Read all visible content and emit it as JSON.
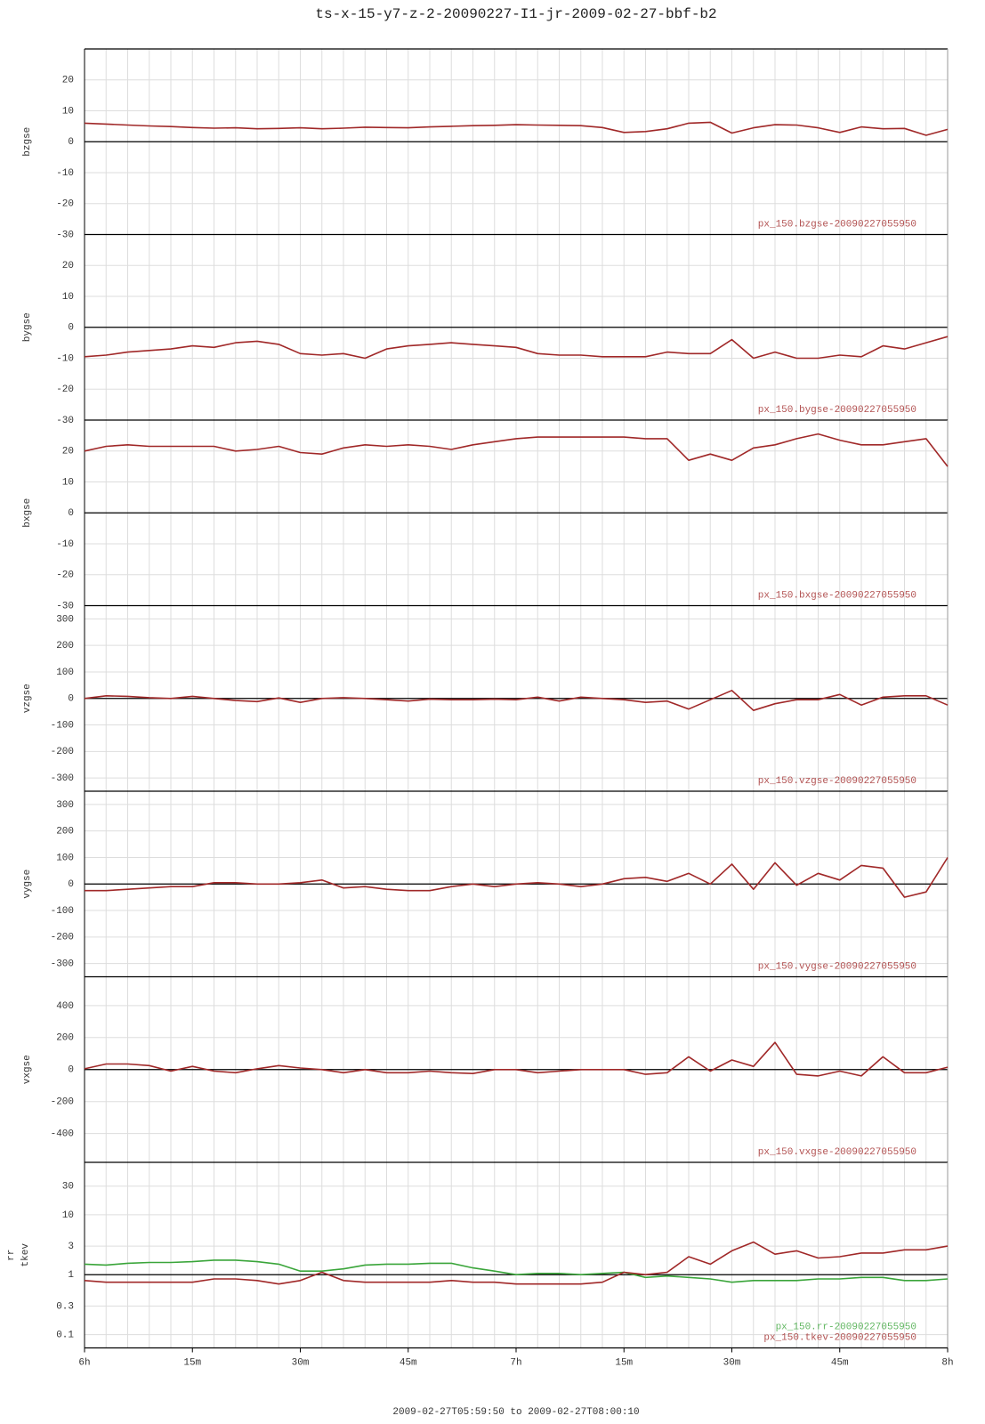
{
  "title": "ts-x-15-y7-z-2-20090227-I1-jr-2009-02-27-bbf-b2",
  "time_range": "2009-02-27T05:59:50 to 2009-02-27T08:00:10",
  "x": [
    "06:00",
    "06:03",
    "06:06",
    "06:09",
    "06:12",
    "06:15",
    "06:18",
    "06:21",
    "06:24",
    "06:27",
    "06:30",
    "06:33",
    "06:36",
    "06:39",
    "06:42",
    "06:45",
    "06:48",
    "06:51",
    "06:54",
    "06:57",
    "07:00",
    "07:03",
    "07:06",
    "07:09",
    "07:12",
    "07:15",
    "07:18",
    "07:21",
    "07:24",
    "07:27",
    "07:30",
    "07:33",
    "07:36",
    "07:39",
    "07:42",
    "07:45",
    "07:48",
    "07:51",
    "07:54",
    "07:57",
    "08:00"
  ],
  "xlim": [
    "06:00",
    "08:00"
  ],
  "xticks": [
    {
      "value": "06:00",
      "label": "6h"
    },
    {
      "value": "06:15",
      "label": "15m"
    },
    {
      "value": "06:30",
      "label": "30m"
    },
    {
      "value": "06:45",
      "label": "45m"
    },
    {
      "value": "07:00",
      "label": "7h"
    },
    {
      "value": "07:15",
      "label": "15m"
    },
    {
      "value": "07:30",
      "label": "30m"
    },
    {
      "value": "07:45",
      "label": "45m"
    },
    {
      "value": "08:00",
      "label": "8h"
    }
  ],
  "chart_data": [
    {
      "type": "line",
      "ylabel": "bzgse",
      "ylim": [
        -30,
        30
      ],
      "yticks": [
        -30,
        -20,
        -10,
        0,
        10,
        20
      ],
      "hline": 0,
      "series": [
        {
          "name": "px_150.bzgse-20090227055950",
          "color": "#a02828",
          "values": [
            6,
            5.7,
            5.4,
            5.1,
            4.9,
            4.6,
            4.4,
            4.5,
            4.2,
            4.3,
            4.5,
            4.2,
            4.4,
            4.7,
            4.6,
            4.5,
            4.8,
            5,
            5.2,
            5.3,
            5.5,
            5.4,
            5.3,
            5.2,
            4.6,
            3,
            3.3,
            4.2,
            6,
            6.3,
            2.8,
            4.5,
            5.5,
            5.4,
            4.5,
            3,
            4.8,
            4.2,
            4.3,
            2.1,
            4
          ]
        }
      ]
    },
    {
      "type": "line",
      "ylabel": "bygse",
      "ylim": [
        -30,
        30
      ],
      "yticks": [
        -30,
        -20,
        -10,
        0,
        10,
        20
      ],
      "hline": 0,
      "series": [
        {
          "name": "px_150.bygse-20090227055950",
          "color": "#a02828",
          "values": [
            -9.5,
            -9,
            -8,
            -7.5,
            -7,
            -6,
            -6.5,
            -5,
            -4.5,
            -5.5,
            -8.5,
            -9,
            -8.5,
            -10,
            -7,
            -6,
            -5.5,
            -5,
            -5.5,
            -6,
            -6.5,
            -8.5,
            -9,
            -9,
            -9.5,
            -9.5,
            -9.5,
            -8,
            -8.5,
            -8.5,
            -4,
            -10,
            -8,
            -10,
            -10,
            -9,
            -9.5,
            -6,
            -7,
            -5,
            -3
          ]
        }
      ]
    },
    {
      "type": "line",
      "ylabel": "bxgse",
      "ylim": [
        -30,
        30
      ],
      "yticks": [
        -30,
        -20,
        -10,
        0,
        10,
        20
      ],
      "hline": 0,
      "series": [
        {
          "name": "px_150.bxgse-20090227055950",
          "color": "#a02828",
          "values": [
            20,
            21.5,
            22,
            21.5,
            21.5,
            21.5,
            21.5,
            20,
            20.5,
            21.5,
            19.5,
            19,
            21,
            22,
            21.5,
            22,
            21.5,
            20.5,
            22,
            23,
            24,
            24.5,
            24.5,
            24.5,
            24.5,
            24.5,
            24,
            24,
            17,
            19,
            17,
            21,
            22,
            24,
            25.5,
            23.5,
            22,
            22,
            23,
            24,
            15
          ]
        }
      ]
    },
    {
      "type": "line",
      "ylabel": "vzgse",
      "ylim": [
        -350,
        350
      ],
      "yticks": [
        -300,
        -200,
        -100,
        0,
        100,
        200,
        300
      ],
      "hline": 0,
      "series": [
        {
          "name": "px_150.vzgse-20090227055950",
          "color": "#a02828",
          "values": [
            0,
            10,
            8,
            3,
            0,
            8,
            0,
            -8,
            -12,
            2,
            -15,
            0,
            3,
            0,
            -5,
            -10,
            -3,
            -5,
            -5,
            -3,
            -5,
            5,
            -10,
            5,
            0,
            -5,
            -15,
            -10,
            -40,
            -5,
            30,
            -45,
            -20,
            -5,
            -5,
            15,
            -25,
            5,
            10,
            10,
            -25
          ]
        }
      ]
    },
    {
      "type": "line",
      "ylabel": "vygse",
      "ylim": [
        -350,
        350
      ],
      "yticks": [
        -300,
        -200,
        -100,
        0,
        100,
        200,
        300
      ],
      "hline": 0,
      "series": [
        {
          "name": "px_150.vygse-20090227055950",
          "color": "#a02828",
          "values": [
            -25,
            -25,
            -20,
            -15,
            -10,
            -10,
            5,
            5,
            0,
            0,
            5,
            15,
            -15,
            -10,
            -20,
            -25,
            -25,
            -10,
            0,
            -10,
            0,
            5,
            0,
            -10,
            0,
            20,
            25,
            10,
            40,
            0,
            75,
            -20,
            80,
            -5,
            40,
            15,
            70,
            60,
            -50,
            -30,
            100
          ]
        }
      ]
    },
    {
      "type": "line",
      "ylabel": "vxgse",
      "ylim": [
        -580,
        580
      ],
      "yticks": [
        -400,
        -200,
        0,
        200,
        400
      ],
      "hline": 0,
      "series": [
        {
          "name": "px_150.vxgse-20090227055950",
          "color": "#a02828",
          "values": [
            5,
            35,
            35,
            25,
            -10,
            20,
            -10,
            -20,
            5,
            25,
            10,
            0,
            -20,
            0,
            -20,
            -20,
            -10,
            -20,
            -25,
            0,
            0,
            -20,
            -10,
            0,
            0,
            0,
            -30,
            -20,
            80,
            -10,
            60,
            20,
            170,
            -30,
            -40,
            -10,
            -40,
            80,
            -20,
            -20,
            15
          ]
        }
      ]
    },
    {
      "type": "line",
      "ylabel": "rr",
      "ylabel2": "tkev",
      "log_y": true,
      "ylim": [
        0.06,
        75
      ],
      "yticks": [
        0.1,
        0.3,
        1,
        3,
        10,
        30
      ],
      "hline": 1,
      "series": [
        {
          "name": "px_150.rr-20090227055950",
          "color": "#3aa53a",
          "values": [
            1.5,
            1.45,
            1.55,
            1.6,
            1.6,
            1.65,
            1.75,
            1.75,
            1.65,
            1.5,
            1.15,
            1.15,
            1.25,
            1.45,
            1.5,
            1.5,
            1.55,
            1.55,
            1.3,
            1.15,
            1.0,
            1.05,
            1.05,
            1.0,
            1.05,
            1.1,
            0.9,
            0.95,
            0.9,
            0.85,
            0.75,
            0.8,
            0.8,
            0.8,
            0.85,
            0.85,
            0.9,
            0.9,
            0.8,
            0.8,
            0.85
          ]
        },
        {
          "name": "px_150.tkev-20090227055950",
          "color": "#a02828",
          "values": [
            0.8,
            0.75,
            0.75,
            0.75,
            0.75,
            0.75,
            0.85,
            0.85,
            0.8,
            0.7,
            0.8,
            1.1,
            0.8,
            0.75,
            0.75,
            0.75,
            0.75,
            0.8,
            0.75,
            0.75,
            0.7,
            0.7,
            0.7,
            0.7,
            0.75,
            1.1,
            1.0,
            1.1,
            2.0,
            1.5,
            2.5,
            3.5,
            2.2,
            2.5,
            1.9,
            2.0,
            2.3,
            2.3,
            2.6,
            2.6,
            3.0
          ]
        }
      ]
    }
  ]
}
